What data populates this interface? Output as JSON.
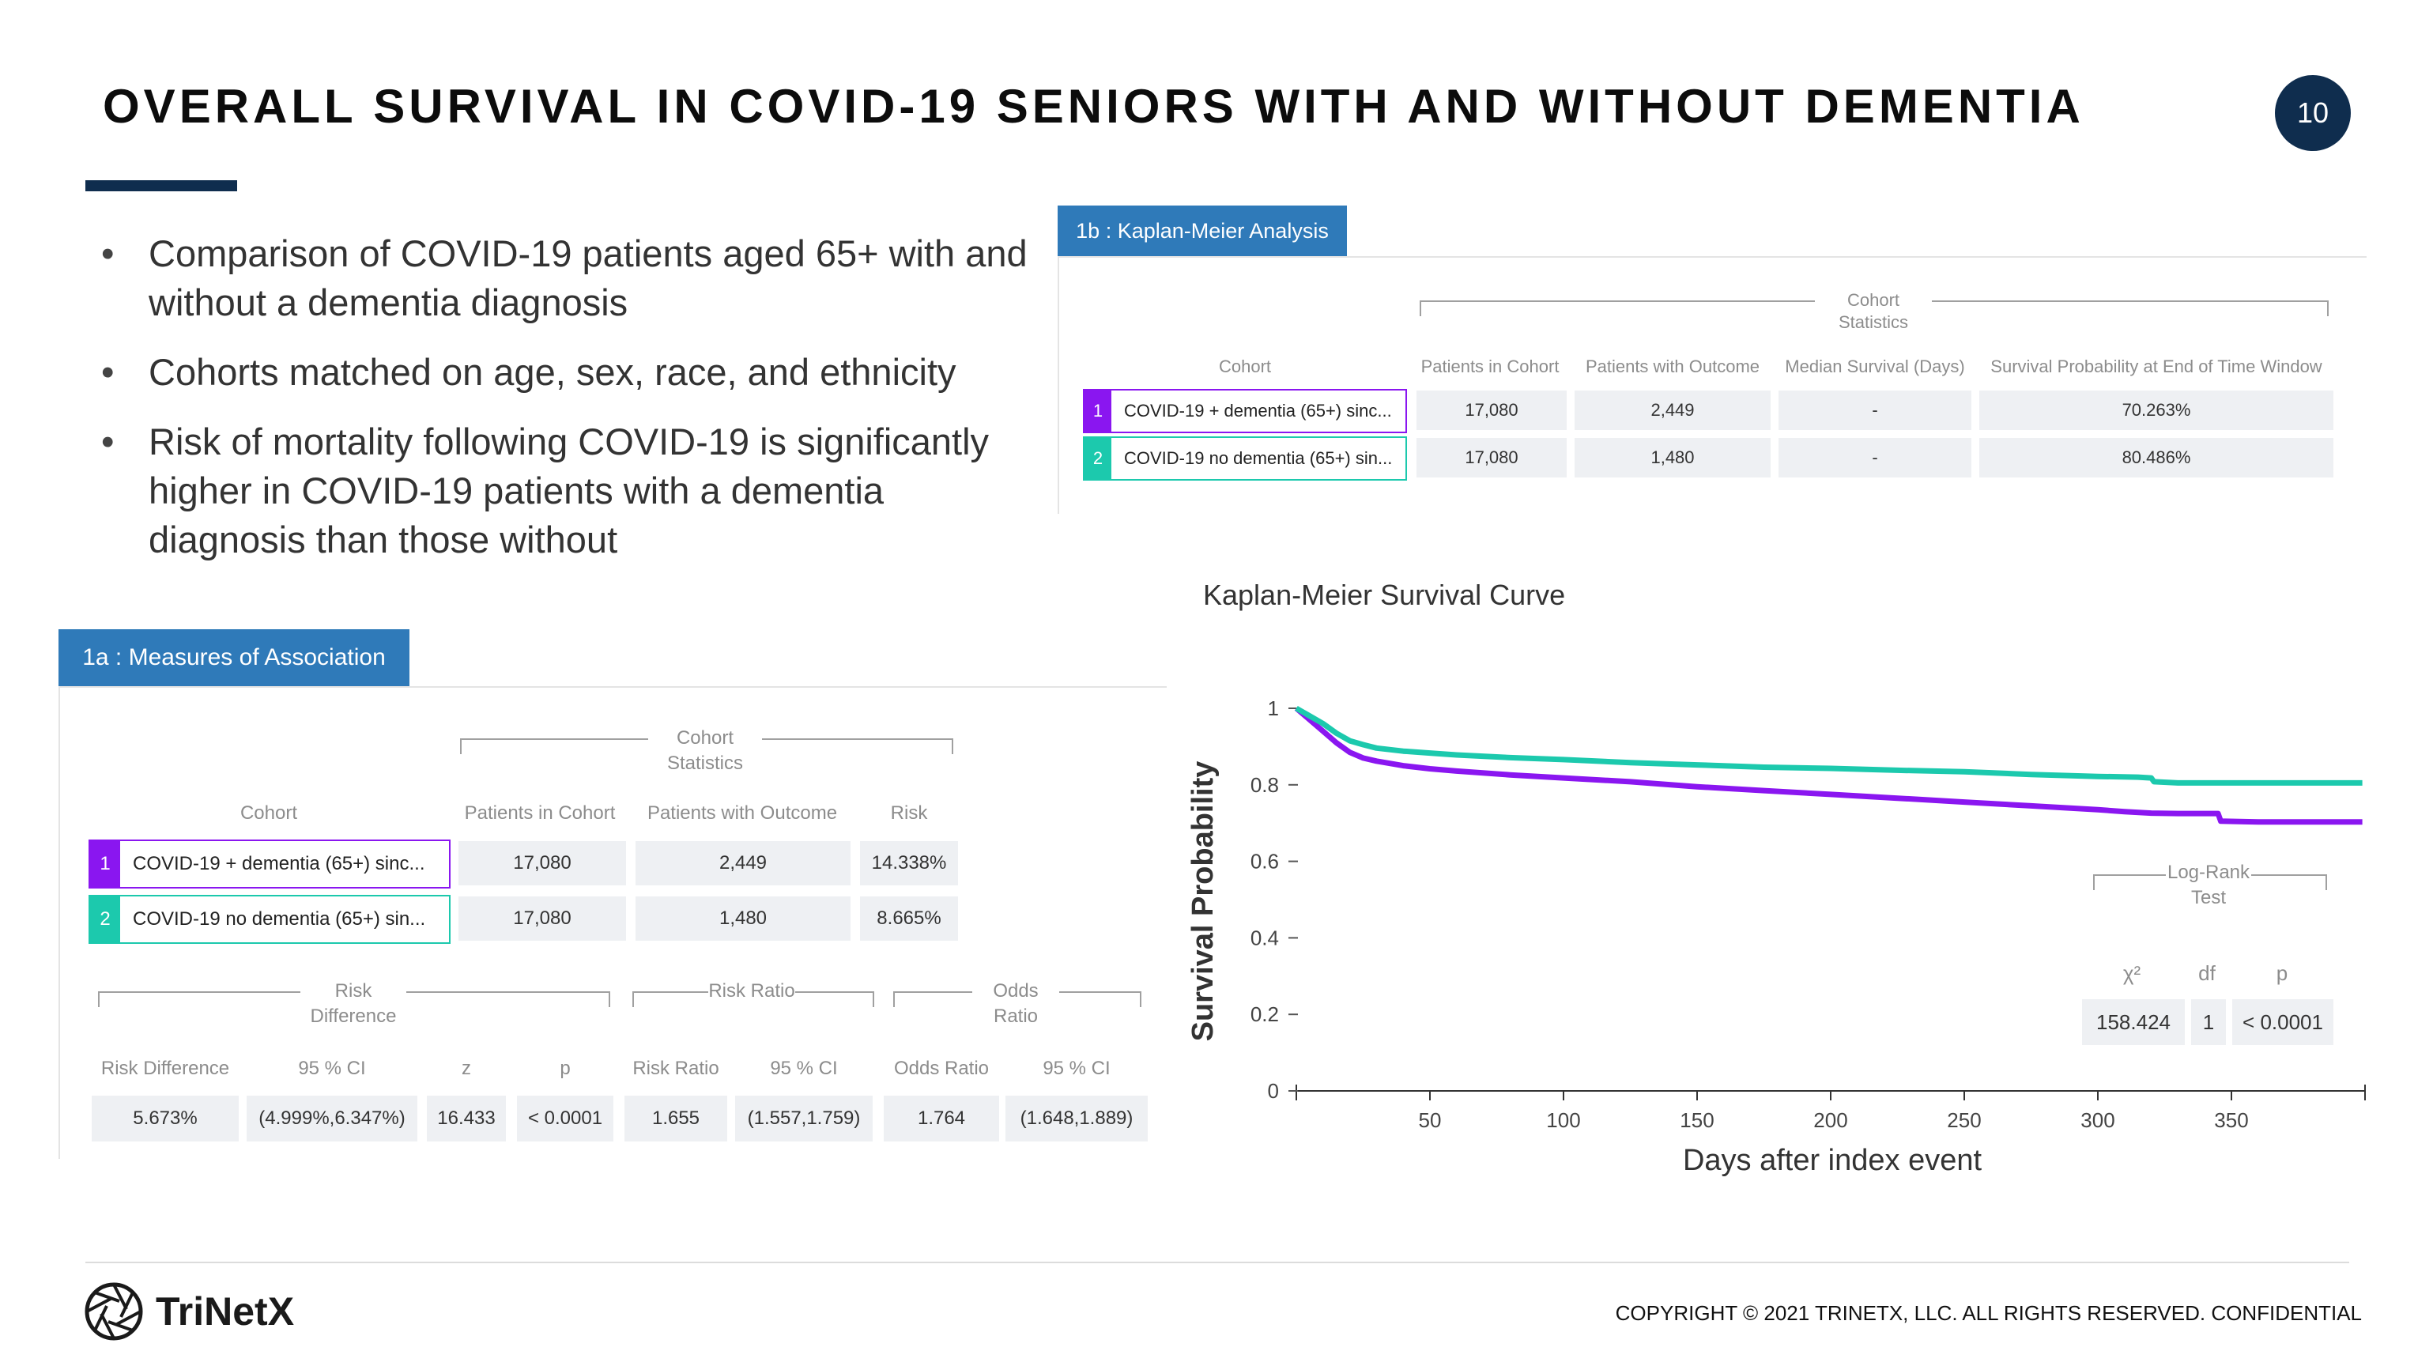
{
  "slide": {
    "title": "OVERALL SURVIVAL IN COVID-19 SENIORS WITH AND WITHOUT DEMENTIA",
    "page_number": "10",
    "accent_color": "#0f2d4e"
  },
  "bullets": [
    "Comparison of COVID-19 patients aged 65+ with and without a dementia diagnosis",
    "Cohorts matched on age, sex, race, and ethnicity",
    "Risk of mortality following COVID-19 is significantly higher in COVID-19 patients with a dementia diagnosis than those without"
  ],
  "moa": {
    "tab_label": "1a : Measures of Association",
    "group_label": "Cohort Statistics",
    "headers": {
      "cohort": "Cohort",
      "patients": "Patients in Cohort",
      "outcome": "Patients with Outcome",
      "risk": "Risk"
    },
    "rows": [
      {
        "num": "1",
        "name": "COVID-19 + dementia (65+) sinc...",
        "patients": "17,080",
        "outcome": "2,449",
        "risk": "14.338%",
        "color": "#8a16f0"
      },
      {
        "num": "2",
        "name": "COVID-19 no dementia (65+) sin...",
        "patients": "17,080",
        "outcome": "1,480",
        "risk": "8.665%",
        "color": "#1cc9ad"
      }
    ],
    "groups": {
      "risk_difference": "Risk Difference",
      "risk_ratio": "Risk Ratio",
      "odds_ratio": "Odds Ratio"
    },
    "stats_headers": {
      "rd": "Risk Difference",
      "rd_ci": "95 % CI",
      "z": "z",
      "p": "p",
      "rr": "Risk Ratio",
      "rr_ci": "95 % CI",
      "or": "Odds Ratio",
      "or_ci": "95 % CI"
    },
    "stats_values": {
      "rd": "5.673%",
      "rd_ci": "(4.999%,6.347%)",
      "z": "16.433",
      "p": "< 0.0001",
      "rr": "1.655",
      "rr_ci": "(1.557,1.759)",
      "or": "1.764",
      "or_ci": "(1.648,1.889)"
    }
  },
  "km": {
    "tab_label": "1b : Kaplan-Meier Analysis",
    "group_label": "Cohort Statistics",
    "headers": {
      "cohort": "Cohort",
      "patients": "Patients in Cohort",
      "outcome": "Patients with Outcome",
      "median": "Median Survival (Days)",
      "survival": "Survival Probability at End of Time Window"
    },
    "rows": [
      {
        "num": "1",
        "name": "COVID-19 + dementia (65+) sinc...",
        "patients": "17,080",
        "outcome": "2,449",
        "median": "-",
        "survival": "70.263%",
        "color": "#8a16f0"
      },
      {
        "num": "2",
        "name": "COVID-19 no dementia (65+) sin...",
        "patients": "17,080",
        "outcome": "1,480",
        "median": "-",
        "survival": "80.486%",
        "color": "#1cc9ad"
      }
    ],
    "logrank": {
      "label": "Log-Rank Test",
      "headers": {
        "chi2": "χ²",
        "df": "df",
        "p": "p"
      },
      "values": {
        "chi2": "158.424",
        "df": "1",
        "p": "< 0.0001"
      }
    }
  },
  "chart_data": {
    "type": "line",
    "title": "Kaplan-Meier Survival Curve",
    "xlabel": "Days after index event",
    "ylabel": "Survival Probability",
    "xlim": [
      0,
      400
    ],
    "ylim": [
      0,
      1
    ],
    "xticks": [
      50,
      100,
      150,
      200,
      250,
      300,
      350
    ],
    "yticks": [
      0,
      0.2,
      0.4,
      0.6,
      0.8,
      1
    ],
    "grid": false,
    "series": [
      {
        "color": "#8a16f0",
        "x": [
          0,
          5,
          10,
          15,
          20,
          25,
          30,
          40,
          50,
          60,
          80,
          100,
          125,
          150,
          175,
          200,
          225,
          250,
          275,
          300,
          310,
          320,
          330,
          345,
          346,
          360,
          380,
          399
        ],
        "y": [
          1.0,
          0.97,
          0.94,
          0.91,
          0.885,
          0.87,
          0.862,
          0.85,
          0.842,
          0.836,
          0.826,
          0.818,
          0.808,
          0.795,
          0.785,
          0.775,
          0.765,
          0.755,
          0.745,
          0.735,
          0.73,
          0.726,
          0.725,
          0.725,
          0.705,
          0.703,
          0.703,
          0.703
        ]
      },
      {
        "color": "#1cc9ad",
        "x": [
          0,
          5,
          10,
          15,
          20,
          25,
          30,
          40,
          50,
          60,
          80,
          100,
          125,
          150,
          175,
          200,
          225,
          250,
          275,
          300,
          315,
          320,
          321,
          330,
          345,
          360,
          380,
          399
        ],
        "y": [
          1.0,
          0.98,
          0.96,
          0.935,
          0.915,
          0.905,
          0.896,
          0.888,
          0.883,
          0.878,
          0.871,
          0.866,
          0.858,
          0.852,
          0.846,
          0.843,
          0.838,
          0.834,
          0.827,
          0.822,
          0.82,
          0.818,
          0.808,
          0.805,
          0.805,
          0.805,
          0.805,
          0.805
        ]
      }
    ]
  }
}
